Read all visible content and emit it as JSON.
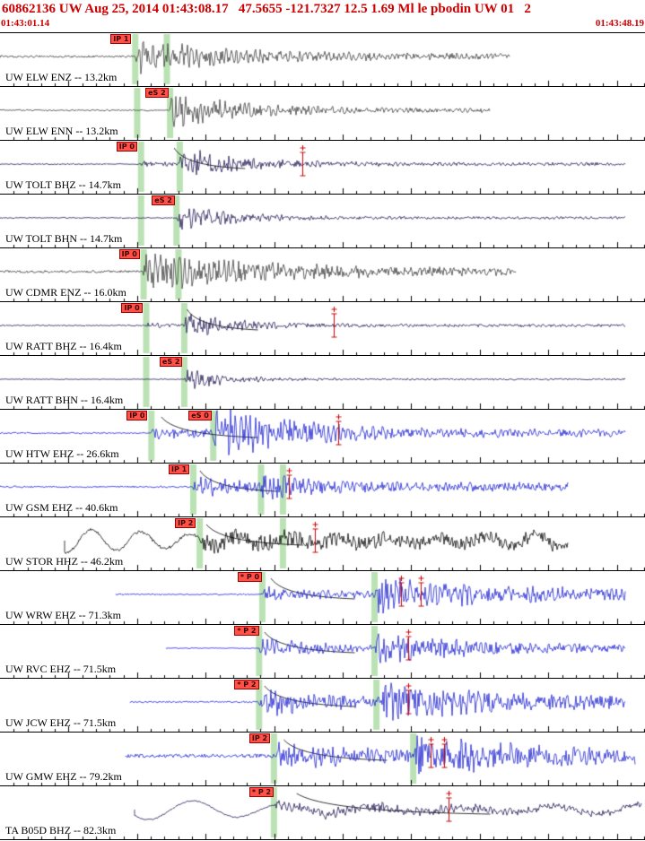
{
  "header": {
    "title": "60862136 UW Aug 25, 2014 01:43:08.17   47.5655 -121.7327 12.5 1.69 Ml le pbodin UW 01   2",
    "left_time": "01:43:01.14",
    "right_time": "01:43:48.19",
    "text_color": "#cc0000"
  },
  "timeline": {
    "window_seconds": 47.05,
    "tick_interval_s": 1,
    "major_tick_s": 5
  },
  "palette": {
    "gray": "#3f3f3f",
    "navy": "#241a55",
    "blue": "#1f24d0",
    "black": "#0a0a0a",
    "band": "rgba(150,210,140,0.65)",
    "pick_red": "#cc0000"
  },
  "traces": [
    {
      "label": "UW ELW ENZ -- 13.2km",
      "color": "#3f3f3f",
      "noise": 1.3,
      "start": 0.0,
      "end": 0.79,
      "bursts": [
        {
          "x": 0.209,
          "a": 13,
          "d": 110,
          "t": 1.5
        }
      ],
      "bands": [
        0.209,
        0.258
      ],
      "picks": [
        {
          "text": "IP 1",
          "x": 0.209
        }
      ],
      "marks": []
    },
    {
      "label": "UW ELW ENN -- 13.2km",
      "color": "#3f3f3f",
      "noise": 0.9,
      "start": 0.0,
      "end": 0.76,
      "bursts": [
        {
          "x": 0.263,
          "a": 15,
          "d": 80,
          "t": 1.2
        }
      ],
      "bands": [
        0.212,
        0.263
      ],
      "picks": [
        {
          "text": "eS 2",
          "x": 0.263
        }
      ],
      "marks": []
    },
    {
      "label": "UW TOLT BHZ -- 14.7km",
      "color": "#241a55",
      "noise": 0.7,
      "start": 0.0,
      "end": 0.97,
      "bursts": [
        {
          "x": 0.218,
          "a": 2.5,
          "d": 40,
          "t": 0.3
        },
        {
          "x": 0.278,
          "a": 14,
          "d": 65,
          "t": 0.8
        }
      ],
      "bands": [
        0.218,
        0.278
      ],
      "picks": [
        {
          "text": "IP 0",
          "x": 0.218
        }
      ],
      "marks": [
        0.469
      ],
      "curve": {
        "x0": 0.27,
        "x1": 0.38
      }
    },
    {
      "label": "UW TOLT BHN -- 14.7km",
      "color": "#241a55",
      "noise": 0.7,
      "start": 0.0,
      "end": 0.97,
      "bursts": [
        {
          "x": 0.273,
          "a": 13,
          "d": 55,
          "t": 0.7
        }
      ],
      "bands": [
        0.218,
        0.273
      ],
      "picks": [
        {
          "text": "eS 2",
          "x": 0.273
        }
      ],
      "marks": []
    },
    {
      "label": "UW CDMR ENZ -- 16.0km",
      "color": "#3f3f3f",
      "noise": 1.6,
      "start": 0.0,
      "end": 0.8,
      "bursts": [
        {
          "x": 0.222,
          "a": 16,
          "d": 140,
          "t": 1.5
        }
      ],
      "bands": [
        0.222,
        0.276
      ],
      "picks": [
        {
          "text": "IP 0",
          "x": 0.222
        }
      ],
      "marks": []
    },
    {
      "label": "UW RATT BHZ -- 16.4km",
      "color": "#241a55",
      "noise": 0.7,
      "start": 0.0,
      "end": 0.97,
      "bursts": [
        {
          "x": 0.226,
          "a": 2,
          "d": 40,
          "t": 0.3
        },
        {
          "x": 0.285,
          "a": 11,
          "d": 55,
          "t": 0.6
        }
      ],
      "bands": [
        0.226,
        0.285
      ],
      "picks": [
        {
          "text": "IP 0",
          "x": 0.226
        }
      ],
      "marks": [
        0.517
      ],
      "curve": {
        "x0": 0.29,
        "x1": 0.4
      }
    },
    {
      "label": "UW RATT BHN -- 16.4km",
      "color": "#241a55",
      "noise": 0.5,
      "start": 0.0,
      "end": 0.97,
      "bursts": [
        {
          "x": 0.285,
          "a": 10,
          "d": 45,
          "t": 0.5
        }
      ],
      "bands": [
        0.226,
        0.285
      ],
      "picks": [
        {
          "text": "eS 2",
          "x": 0.285
        }
      ],
      "marks": []
    },
    {
      "label": "UW HTW EHZ -- 26.6km",
      "color": "#1f24d0",
      "noise": 0.9,
      "start": 0.0,
      "end": 0.97,
      "bursts": [
        {
          "x": 0.234,
          "a": 5,
          "d": 70,
          "t": 1.0
        },
        {
          "x": 0.33,
          "a": 19,
          "d": 100,
          "t": 1.5
        }
      ],
      "bands": [
        0.234,
        0.33
      ],
      "picks": [
        {
          "text": "IP 0",
          "x": 0.234
        },
        {
          "text": "eS 0",
          "x": 0.33
        }
      ],
      "marks": [
        0.524
      ],
      "curve": {
        "x0": 0.25,
        "x1": 0.4
      }
    },
    {
      "label": "UW GSM EHZ -- 40.6km",
      "color": "#1f24d0",
      "noise": 1.1,
      "start": 0.0,
      "end": 0.88,
      "bursts": [
        {
          "x": 0.299,
          "a": 10,
          "d": 55,
          "t": 1.5
        },
        {
          "x": 0.404,
          "a": 7,
          "d": 70,
          "t": 2.0
        }
      ],
      "bands": [
        0.299,
        0.404,
        0.438
      ],
      "picks": [
        {
          "text": "IP 1",
          "x": 0.299
        }
      ],
      "marks": [
        0.448
      ],
      "curve": {
        "x0": 0.31,
        "x1": 0.43
      }
    },
    {
      "label": "UW STOR HHZ -- 46.2km",
      "color": "#0a0a0a",
      "noise": 1.8,
      "start": 0.1,
      "end": 0.88,
      "lf": {
        "a": 12,
        "p": 55
      },
      "bursts": [
        {
          "x": 0.309,
          "a": 5,
          "d": 300,
          "t": 3.0
        }
      ],
      "bands": [
        0.309,
        0.438
      ],
      "picks": [
        {
          "text": "IP 2",
          "x": 0.309
        }
      ],
      "marks": [
        0.488
      ],
      "curve": {
        "x0": 0.32,
        "x1": 0.47
      }
    },
    {
      "label": "UW WRW EHZ -- 71.3km",
      "color": "#1f24d0",
      "noise": 0.8,
      "start": 0.18,
      "end": 0.97,
      "bursts": [
        {
          "x": 0.406,
          "a": 5,
          "d": 90,
          "t": 1.5
        },
        {
          "x": 0.58,
          "a": 12,
          "d": 100,
          "t": 3.0
        }
      ],
      "bands": [
        0.406,
        0.58
      ],
      "picks": [
        {
          "text": "* P 0",
          "x": 0.406
        }
      ],
      "marks": [
        0.622,
        0.652
      ],
      "curve": {
        "x0": 0.42,
        "x1": 0.55
      }
    },
    {
      "label": "UW RVC EHZ -- 71.5km",
      "color": "#1f24d0",
      "noise": 0.5,
      "start": 0.257,
      "end": 0.97,
      "bursts": [
        {
          "x": 0.401,
          "a": 8,
          "d": 80,
          "t": 1.0
        },
        {
          "x": 0.58,
          "a": 11,
          "d": 100,
          "t": 2.0
        }
      ],
      "bands": [
        0.401,
        0.58
      ],
      "picks": [
        {
          "text": "* P 2",
          "x": 0.401
        }
      ],
      "marks": [
        0.633
      ],
      "curve": {
        "x0": 0.41,
        "x1": 0.55
      }
    },
    {
      "label": "UW JCW EHZ -- 71.5km",
      "color": "#1f24d0",
      "noise": 1.0,
      "start": 0.202,
      "end": 0.97,
      "bursts": [
        {
          "x": 0.401,
          "a": 11,
          "d": 85,
          "t": 2.0
        },
        {
          "x": 0.59,
          "a": 13,
          "d": 120,
          "t": 3.0
        }
      ],
      "bands": [
        0.401,
        0.583
      ],
      "picks": [
        {
          "text": "* P 2",
          "x": 0.401
        }
      ],
      "marks": [
        0.633
      ],
      "curve": {
        "x0": 0.41,
        "x1": 0.55
      }
    },
    {
      "label": "UW GMW EHZ -- 79.2km",
      "color": "#1f24d0",
      "noise": 2.2,
      "start": 0.195,
      "end": 0.985,
      "bursts": [
        {
          "x": 0.424,
          "a": 9,
          "d": 110,
          "t": 2.5
        },
        {
          "x": 0.64,
          "a": 12,
          "d": 120,
          "t": 3.0
        }
      ],
      "bands": [
        0.424,
        0.64
      ],
      "picks": [
        {
          "text": "IP 2",
          "x": 0.424
        }
      ],
      "marks": [
        0.668,
        0.688
      ],
      "curve": {
        "x0": 0.44,
        "x1": 0.6
      }
    },
    {
      "label": "TA B05D BHZ -- 82.3km",
      "color": "#241a55",
      "noise": 0.8,
      "start": 0.209,
      "end": 0.995,
      "lf": {
        "a": 10,
        "p": 100
      },
      "bursts": [
        {
          "x": 0.424,
          "a": 4,
          "d": 250,
          "t": 1.5
        }
      ],
      "bands": [
        0.424
      ],
      "picks": [
        {
          "text": "* P 2",
          "x": 0.424
        }
      ],
      "marks": [
        0.695
      ],
      "curve": {
        "x0": 0.46,
        "x1": 0.76
      }
    }
  ]
}
